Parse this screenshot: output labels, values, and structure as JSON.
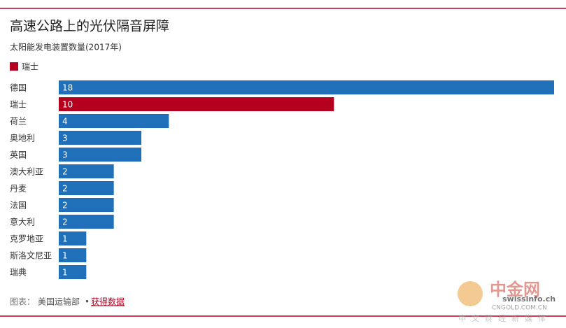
{
  "chart_data": {
    "type": "barh",
    "title": "高速公路上的光伏隔音屏障",
    "subtitle": "太阳能发电装置数量(2017年)",
    "legend": [
      {
        "name": "瑞士",
        "color": "#b5001f"
      }
    ],
    "categories": [
      "德国",
      "瑞士",
      "荷兰",
      "奥地利",
      "英国",
      "澳大利亚",
      "丹麦",
      "法国",
      "意大利",
      "克罗地亚",
      "斯洛文尼亚",
      "瑞典"
    ],
    "values": [
      18,
      10,
      4,
      3,
      3,
      2,
      2,
      2,
      2,
      1,
      1,
      1
    ],
    "colors": [
      "#1f6fb9",
      "#b5001f",
      "#1f6fb9",
      "#1f6fb9",
      "#1f6fb9",
      "#1f6fb9",
      "#1f6fb9",
      "#1f6fb9",
      "#1f6fb9",
      "#1f6fb9",
      "#1f6fb9",
      "#1f6fb9"
    ],
    "xlim": [
      0,
      18
    ]
  },
  "footer": {
    "label": "图表：",
    "source": "美国运输部",
    "separator": "•",
    "link": "获得数据"
  },
  "watermark": [
    "中金网",
    "swissinfo.ch",
    "CNGOLD.COM.CN",
    "中文财经新媒体"
  ]
}
